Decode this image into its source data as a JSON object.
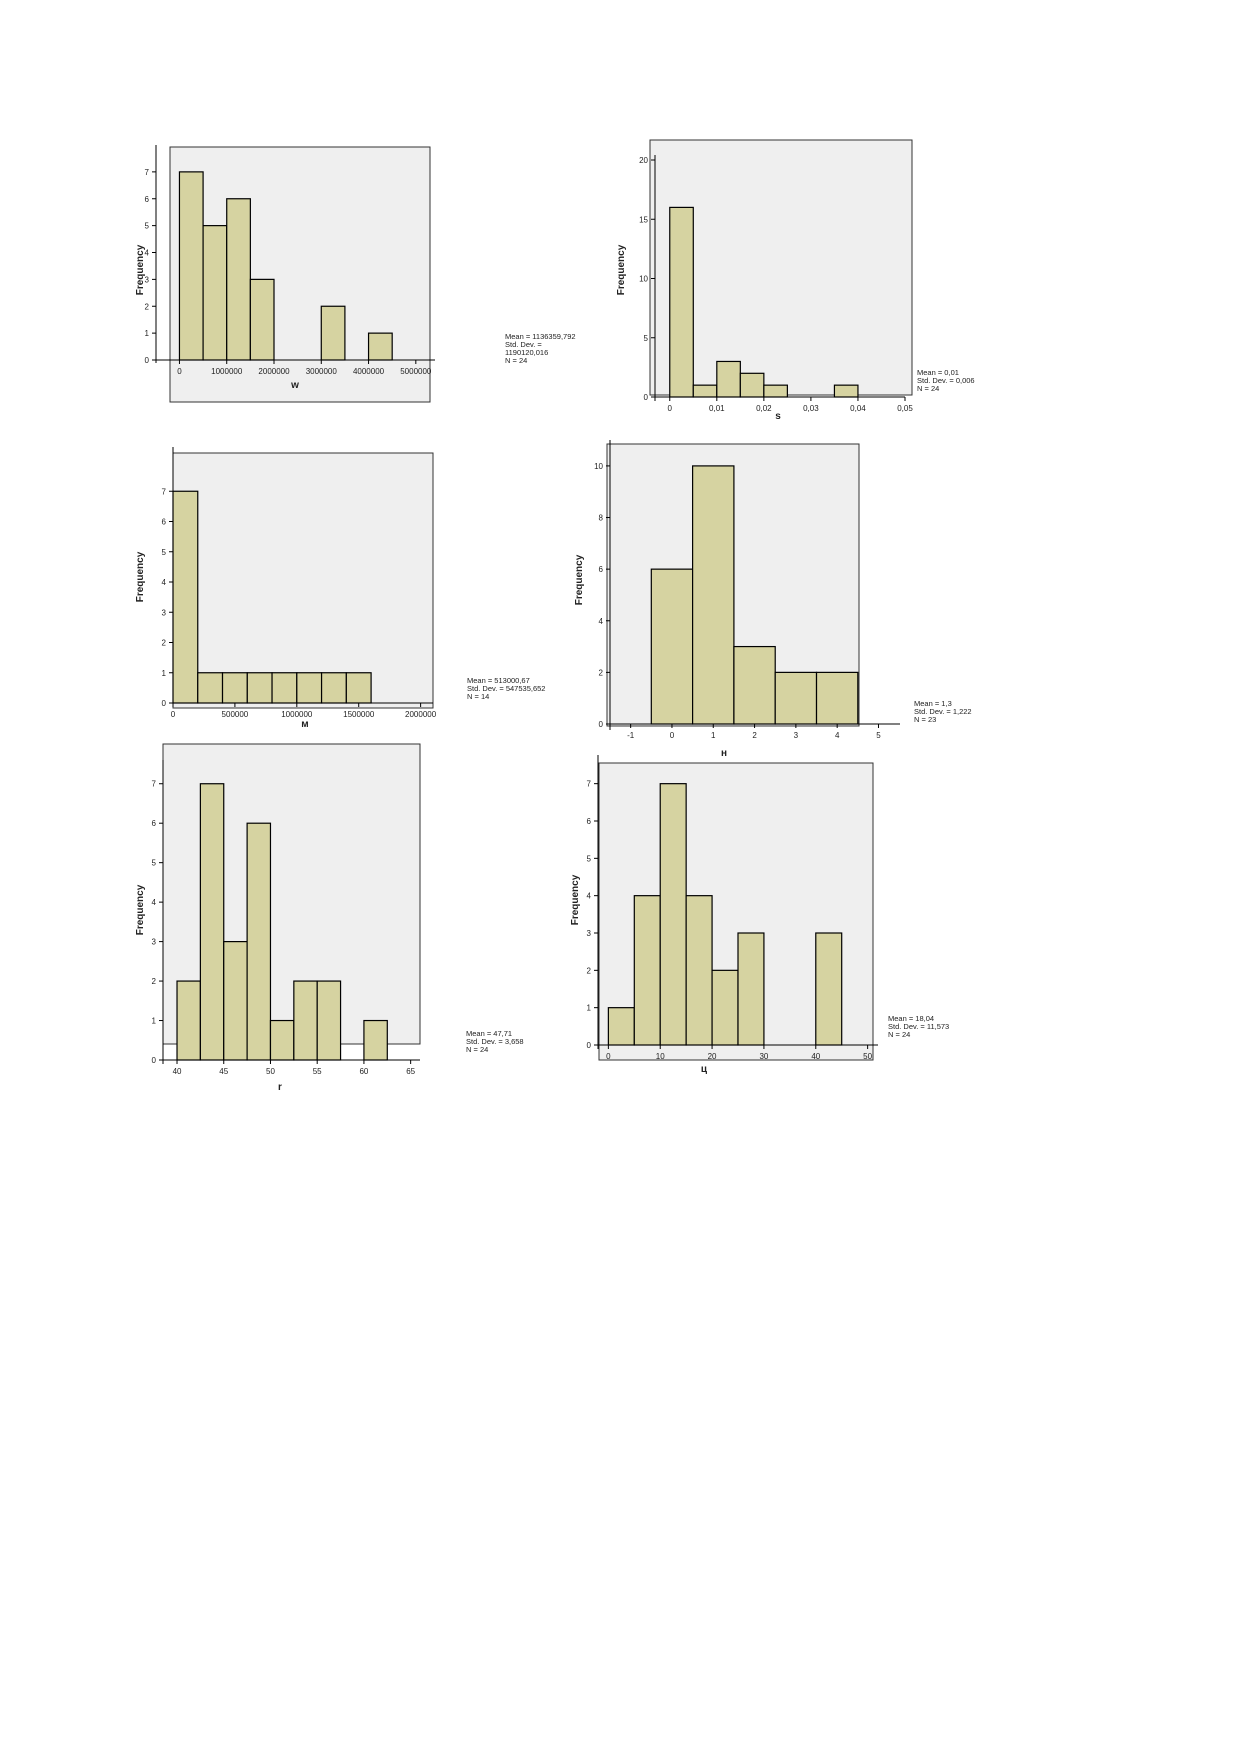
{
  "chart_data": [
    {
      "type": "bar",
      "xlabel": "w",
      "ylabel": "Frequency",
      "bin_edges": [
        0,
        500000,
        1000000,
        1500000,
        2000000,
        2500000,
        3000000,
        3500000,
        4000000,
        4500000
      ],
      "values": [
        7,
        5,
        6,
        3,
        0,
        0,
        2,
        0,
        1
      ],
      "xlim": [
        -200000,
        5300000
      ],
      "ylim": [
        0,
        8
      ],
      "x_ticks": [
        0,
        1000000,
        2000000,
        3000000,
        4000000,
        5000000
      ],
      "x_tick_labels": [
        "0",
        "1000000",
        "2000000",
        "3000000",
        "4000000",
        "5000000"
      ],
      "y_ticks": [
        0,
        1,
        2,
        3,
        4,
        5,
        6,
        7
      ],
      "stats": [
        "Mean = 1136359,792",
        "Std. Dev. =",
        "1190120,016",
        "N = 24"
      ]
    },
    {
      "type": "bar",
      "xlabel": "s",
      "ylabel": "Frequency",
      "bin_edges": [
        0,
        0.005,
        0.01,
        0.015,
        0.02,
        0.025,
        0.03,
        0.035,
        0.04
      ],
      "values": [
        16,
        1,
        3,
        2,
        1,
        0,
        0,
        1
      ],
      "xlim": [
        -0.0025,
        0.05
      ],
      "ylim": [
        0,
        20
      ],
      "x_ticks": [
        0,
        0.01,
        0.02,
        0.03,
        0.04,
        0.05
      ],
      "x_tick_labels": [
        "0",
        "0,01",
        "0,02",
        "0,03",
        "0,04",
        "0,05"
      ],
      "y_ticks": [
        0,
        5,
        10,
        15,
        20
      ],
      "stats": [
        "Mean = 0,01",
        "Std. Dev. = 0,006",
        "N = 24"
      ]
    },
    {
      "type": "bar",
      "xlabel": "м",
      "ylabel": "Frequency",
      "bin_edges": [
        0,
        200000,
        400000,
        600000,
        800000,
        1000000,
        1200000,
        1400000,
        1600000
      ],
      "values": [
        7,
        1,
        1,
        1,
        1,
        1,
        1,
        1
      ],
      "xlim": [
        0,
        2100000
      ],
      "ylim": [
        0,
        8
      ],
      "x_ticks": [
        0,
        500000,
        1000000,
        1500000,
        2000000
      ],
      "x_tick_labels": [
        "0",
        "500000",
        "1000000",
        "1500000",
        "2000000"
      ],
      "y_ticks": [
        0,
        1,
        2,
        3,
        4,
        5,
        6,
        7
      ],
      "stats": [
        "Mean = 513000,67",
        "Std. Dev. = 547535,652",
        "N = 14"
      ]
    },
    {
      "type": "bar",
      "xlabel": "н",
      "ylabel": "Frequency",
      "bin_edges": [
        -0.5,
        0.5,
        1.5,
        2.5,
        3.5,
        4.5
      ],
      "values": [
        6,
        10,
        3,
        2,
        2
      ],
      "xlim": [
        -1.5,
        5.4
      ],
      "ylim": [
        0,
        10.5
      ],
      "x_ticks": [
        -1,
        0,
        1,
        2,
        3,
        4,
        5
      ],
      "x_tick_labels": [
        "-1",
        "0",
        "1",
        "2",
        "3",
        "4",
        "5"
      ],
      "y_ticks": [
        0,
        2,
        4,
        6,
        8,
        10
      ],
      "stats": [
        "Mean = 1,3",
        "Std. Dev. = 1,222",
        "N = 23"
      ]
    },
    {
      "type": "bar",
      "xlabel": "r",
      "ylabel": "Frequency",
      "bin_edges": [
        40,
        42.5,
        45,
        47.5,
        50,
        52.5,
        55,
        57.5,
        60,
        62.5
      ],
      "values": [
        2,
        7,
        3,
        6,
        1,
        2,
        2,
        0,
        1
      ],
      "xlim": [
        38.5,
        66
      ],
      "ylim": [
        0,
        7.5
      ],
      "x_ticks": [
        40,
        45,
        50,
        55,
        60,
        65
      ],
      "x_tick_labels": [
        "40",
        "45",
        "50",
        "55",
        "60",
        "65"
      ],
      "y_ticks": [
        0,
        1,
        2,
        3,
        4,
        5,
        6,
        7
      ],
      "stats": [
        "Mean = 47,71",
        "Std. Dev. = 3,658",
        "N = 24"
      ]
    },
    {
      "type": "bar",
      "xlabel": "ц",
      "ylabel": "Frequency",
      "bin_edges": [
        0,
        5,
        10,
        15,
        20,
        25,
        30,
        35,
        40,
        45
      ],
      "values": [
        1,
        4,
        7,
        4,
        2,
        3,
        0,
        0,
        3
      ],
      "xlim": [
        -2,
        52
      ],
      "ylim": [
        0,
        7.5
      ],
      "x_ticks": [
        0,
        10,
        20,
        30,
        40,
        50
      ],
      "x_tick_labels": [
        "0",
        "10",
        "20",
        "30",
        "40",
        "50"
      ],
      "y_ticks": [
        0,
        1,
        2,
        3,
        4,
        5,
        6,
        7
      ],
      "stats": [
        "Mean = 18,04",
        "Std. Dev. = 11,573",
        "N = 24"
      ]
    }
  ],
  "style": {
    "bar_fill": "#d6d3a1",
    "bar_stroke": "#000000",
    "plot_bg": "#efefef"
  }
}
